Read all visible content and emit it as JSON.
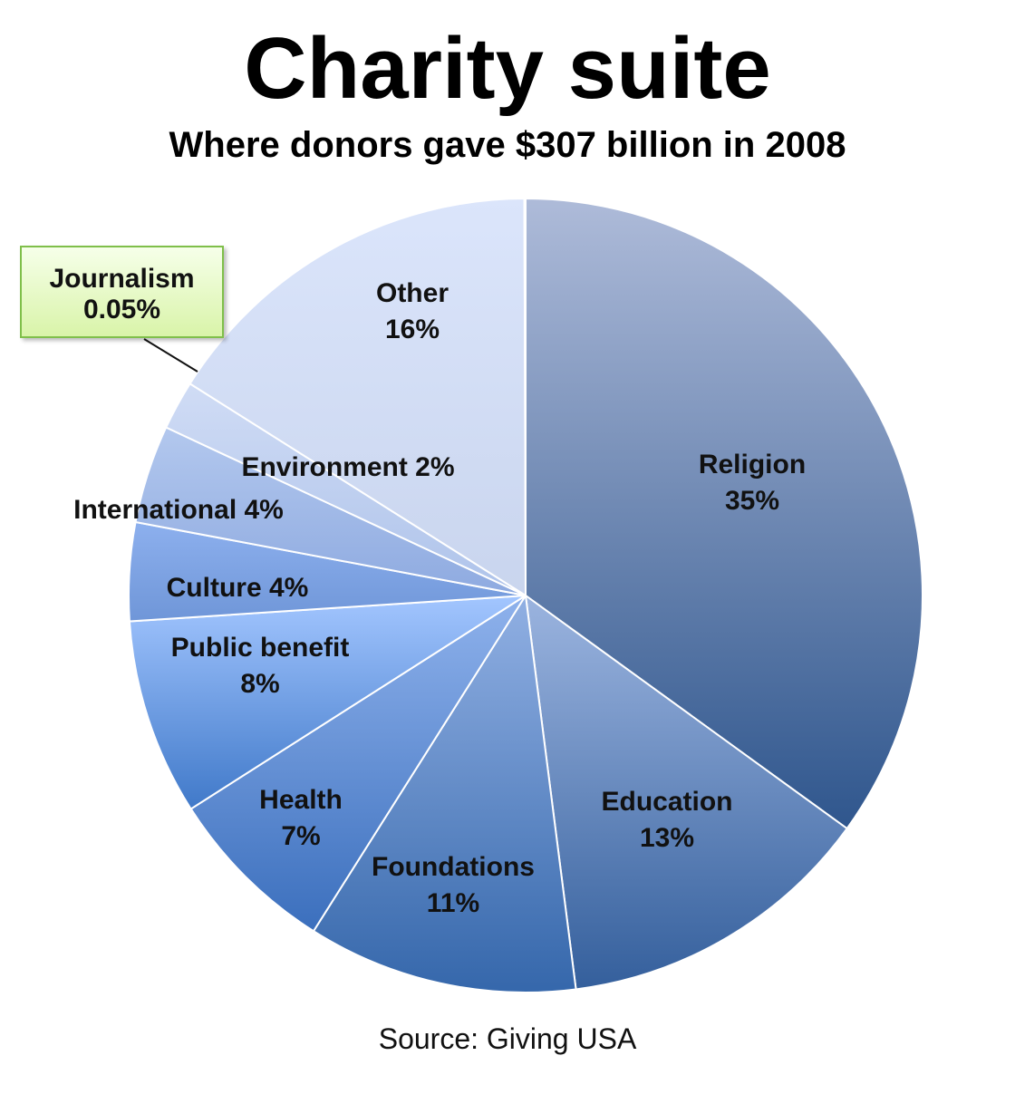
{
  "chart_data": {
    "type": "pie",
    "title": "Charity suite",
    "subtitle": "Where donors gave $307 billion in 2008",
    "source": "Source: Giving USA",
    "slices": [
      {
        "name": "Religion",
        "value": 35,
        "label_lines": [
          "Religion",
          "35%"
        ],
        "color_top": "#aebbd9",
        "color_bottom": "#2f568d"
      },
      {
        "name": "Education",
        "value": 13,
        "label_lines": [
          "Education",
          "13%"
        ],
        "color_top": "#9bb4df",
        "color_bottom": "#345f9c"
      },
      {
        "name": "Foundations",
        "value": 11,
        "label_lines": [
          "Foundations",
          "11%"
        ],
        "color_top": "#91b0e3",
        "color_bottom": "#3567ab"
      },
      {
        "name": "Health",
        "value": 7,
        "label_lines": [
          "Health",
          "7%"
        ],
        "color_top": "#8fb2ec",
        "color_bottom": "#3b6fbd"
      },
      {
        "name": "Public benefit",
        "value": 8,
        "label_lines": [
          "Public benefit",
          "8%"
        ],
        "color_top": "#a3c6ff",
        "color_bottom": "#4079c9"
      },
      {
        "name": "Culture",
        "value": 4,
        "label_lines": [
          "Culture 4%"
        ],
        "color_top": "#8db0ee",
        "color_bottom": "#6f96d8"
      },
      {
        "name": "International",
        "value": 4,
        "label_lines": [
          "International 4%"
        ],
        "color_top": "#b3c8ee",
        "color_bottom": "#8eaae0"
      },
      {
        "name": "Environment",
        "value": 2,
        "label_lines": [
          "Environment 2%"
        ],
        "color_top": "#d0dcf5",
        "color_bottom": "#aec3ea"
      },
      {
        "name": "Other",
        "value": 16,
        "label_lines": [
          "Other",
          "16%"
        ],
        "color_top": "#dbe5fb",
        "color_bottom": "#c9d5ee"
      },
      {
        "name": "Journalism",
        "value": 0.05,
        "label_lines": [
          "Journalism",
          "0.05%"
        ],
        "color_top": "#f6ffe9",
        "color_bottom": "#d9f4a9"
      }
    ]
  }
}
